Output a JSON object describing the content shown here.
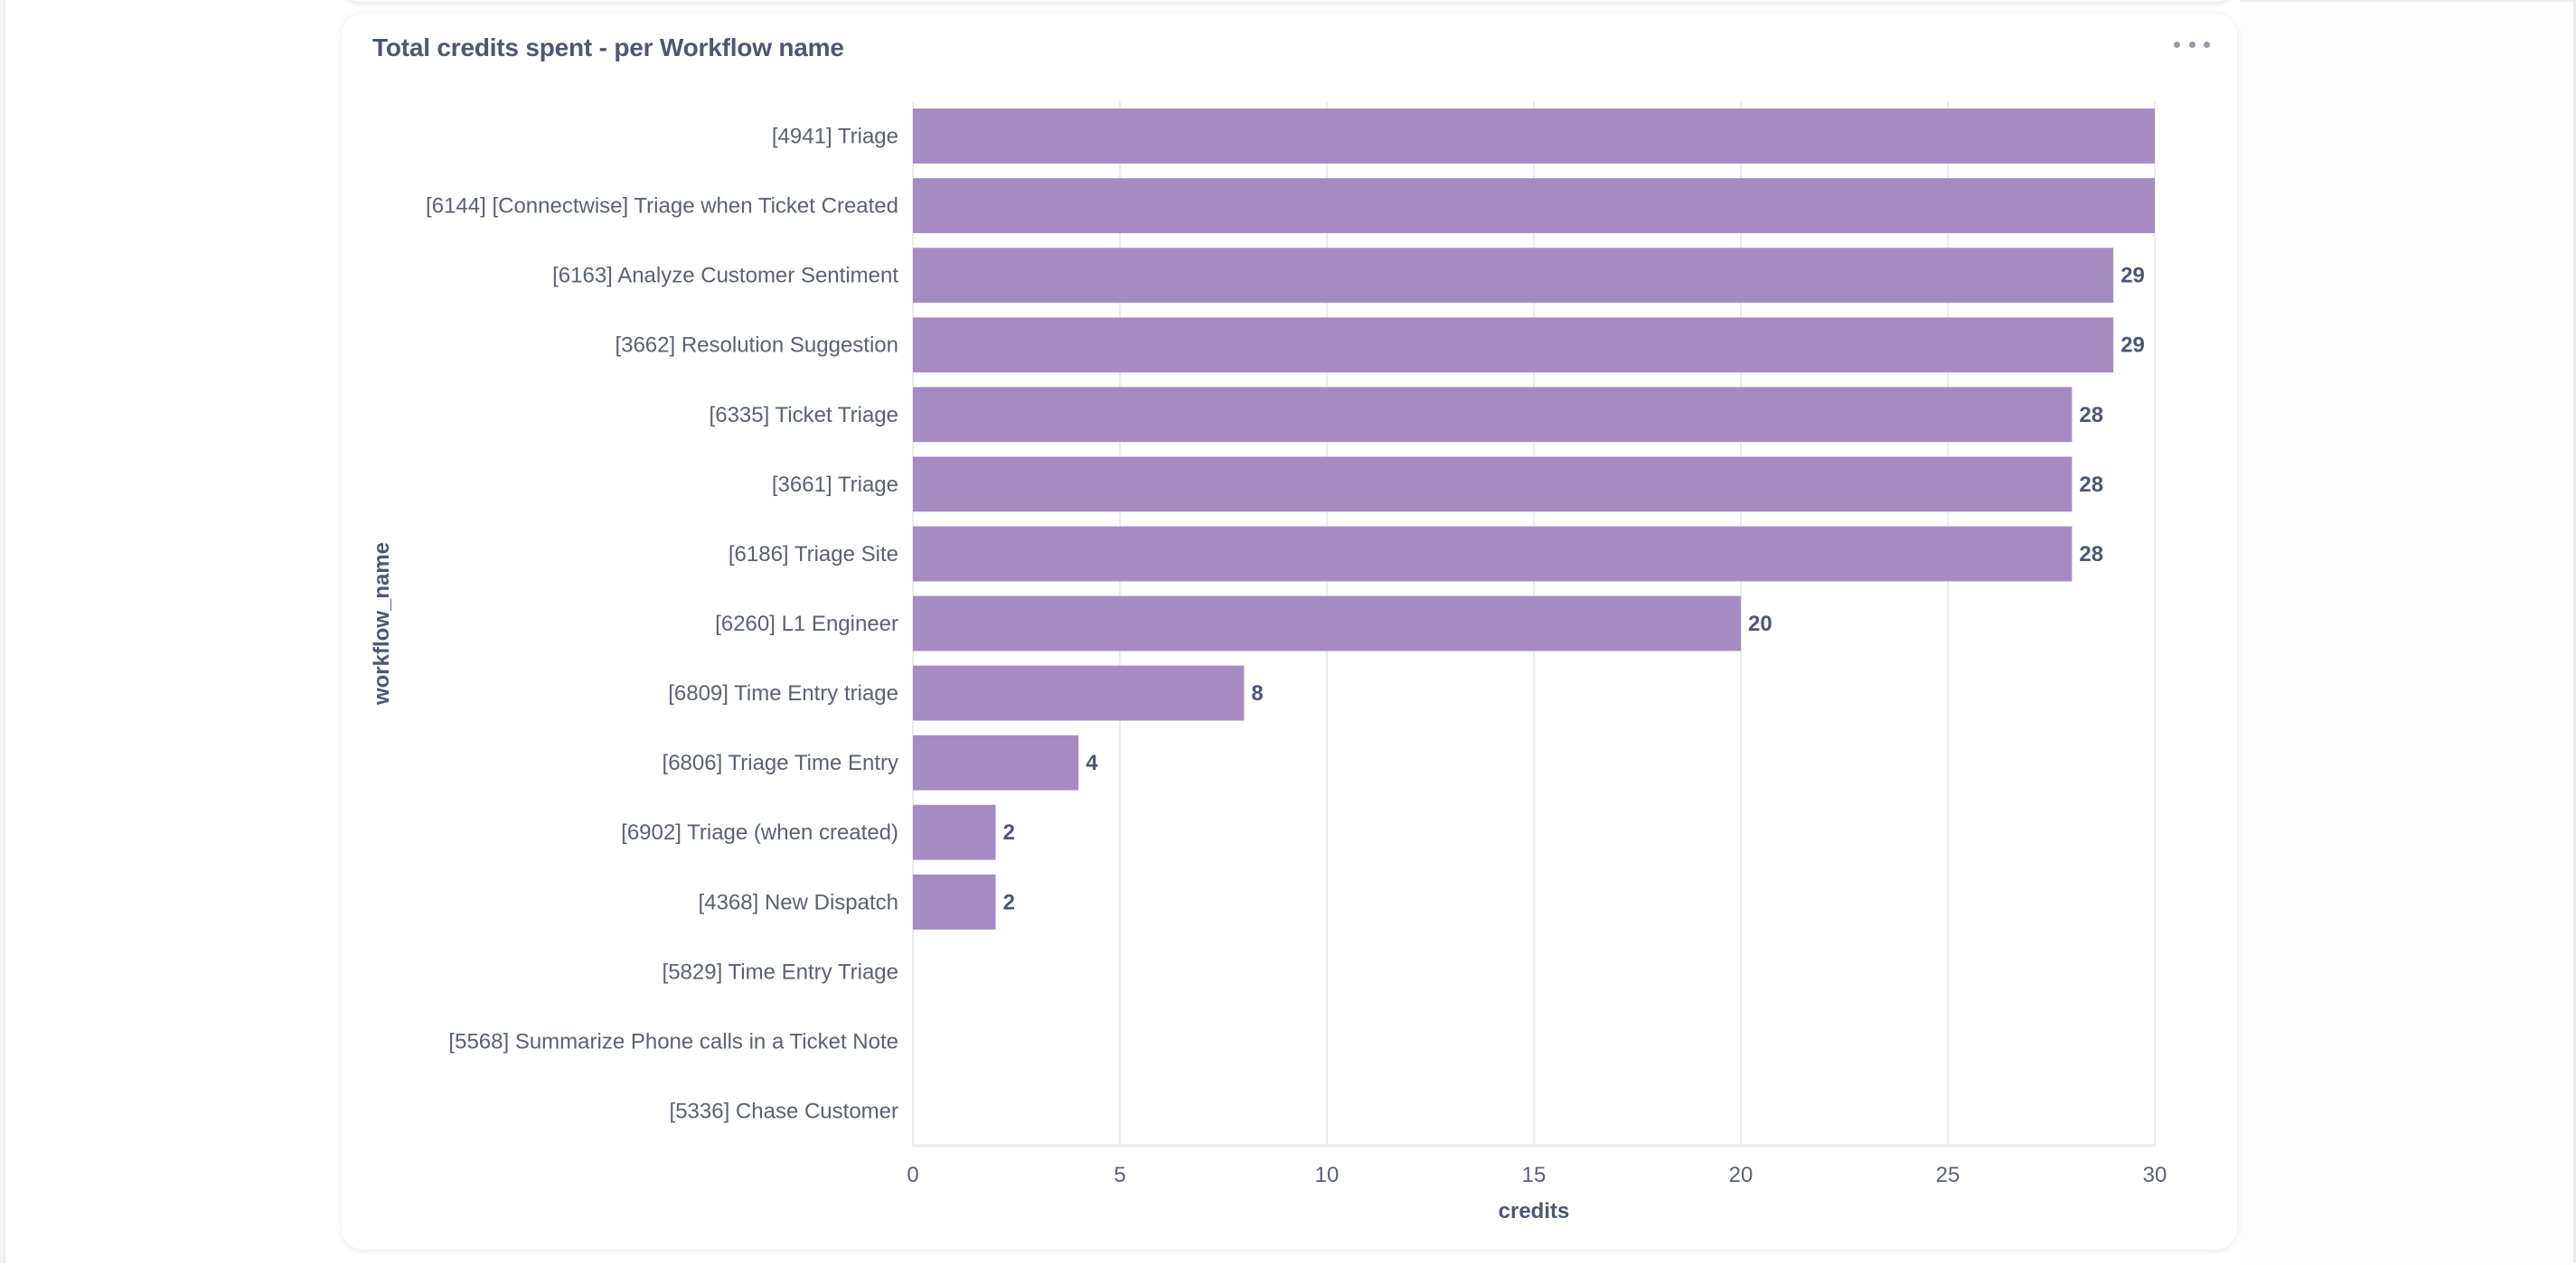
{
  "card": {
    "title": "Total credits spent - per Workflow name",
    "menu_icon": "more-horizontal-icon"
  },
  "colors": {
    "bar": "#A68BC2",
    "grid": "#ECECEE",
    "text": "#4C5773"
  },
  "chart_data": {
    "type": "bar",
    "orientation": "horizontal",
    "title": "Total credits spent - per Workflow name",
    "xlabel": "credits",
    "ylabel": "workflow_name",
    "xlim": [
      0,
      30
    ],
    "x_ticks": [
      "0",
      "5",
      "10",
      "15",
      "20",
      "25",
      "30"
    ],
    "grid": true,
    "categories": [
      "[4941] Triage",
      "[6144] [Connectwise] Triage when Ticket Created",
      "[6163] Analyze Customer Sentiment",
      "[3662] Resolution Suggestion",
      "[6335] Ticket Triage",
      "[3661] Triage",
      "[6186] Triage Site",
      "[6260] L1 Engineer",
      "[6809] Time Entry triage",
      "[6806] Triage Time Entry",
      "[6902] Triage (when created)",
      "[4368] New Dispatch",
      "[5829] Time Entry Triage",
      "[5568] Summarize Phone calls in a Ticket Note",
      "[5336] Chase Customer"
    ],
    "values": [
      30,
      30,
      29,
      29,
      28,
      28,
      28,
      20,
      8,
      4,
      2,
      2,
      0,
      0,
      0
    ],
    "data_labels": [
      "",
      "",
      "29",
      "29",
      "28",
      "28",
      "28",
      "20",
      "8",
      "4",
      "2",
      "2",
      "",
      "",
      ""
    ]
  }
}
